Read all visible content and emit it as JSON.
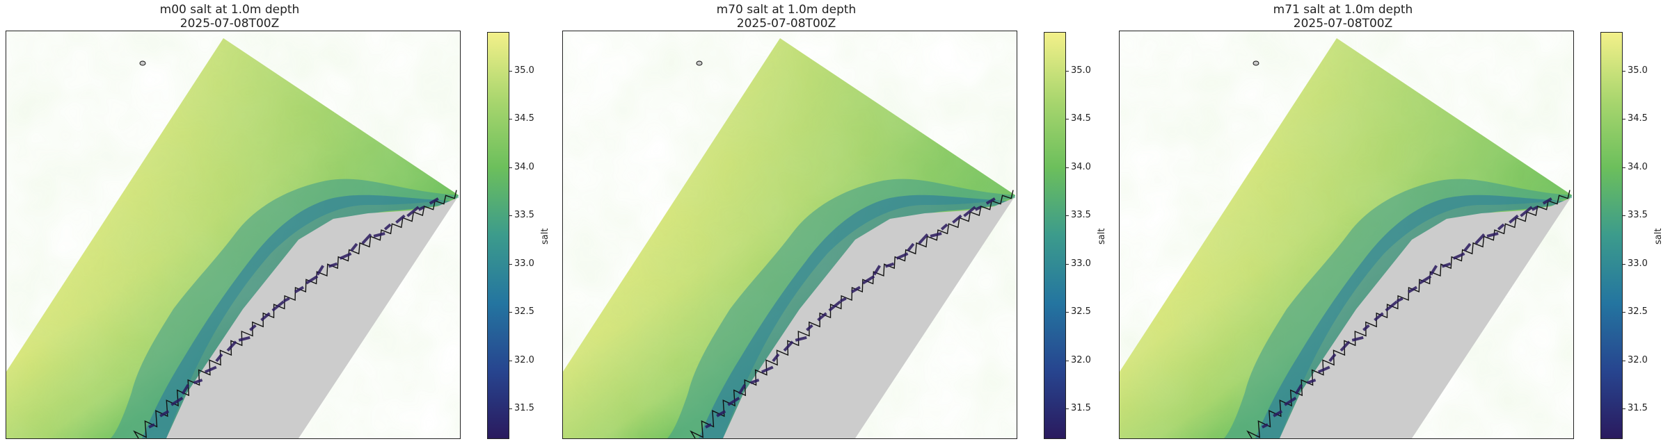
{
  "colormap": {
    "name": "haline-like",
    "stops": [
      "#2a1a5e",
      "#27458f",
      "#2475a0",
      "#3c9b8c",
      "#6cbf5c",
      "#a9d66e",
      "#f3f08a"
    ]
  },
  "land_color": "#cccccc",
  "coast_color": "#111111",
  "colorbar": {
    "label": "salt",
    "vmin": 31.2,
    "vmax": 35.4,
    "ticks": [
      "31.5",
      "32.0",
      "32.5",
      "33.0",
      "33.5",
      "34.0",
      "34.5",
      "35.0"
    ]
  },
  "panels": [
    {
      "id": "m00",
      "title_line1": "m00 salt at 1.0m depth",
      "title_line2": "2025-07-08T00Z"
    },
    {
      "id": "m70",
      "title_line1": "m70 salt at 1.0m depth",
      "title_line2": "2025-07-08T00Z"
    },
    {
      "id": "m71",
      "title_line1": "m71 salt at 1.0m depth",
      "title_line2": "2025-07-08T00Z"
    }
  ]
}
